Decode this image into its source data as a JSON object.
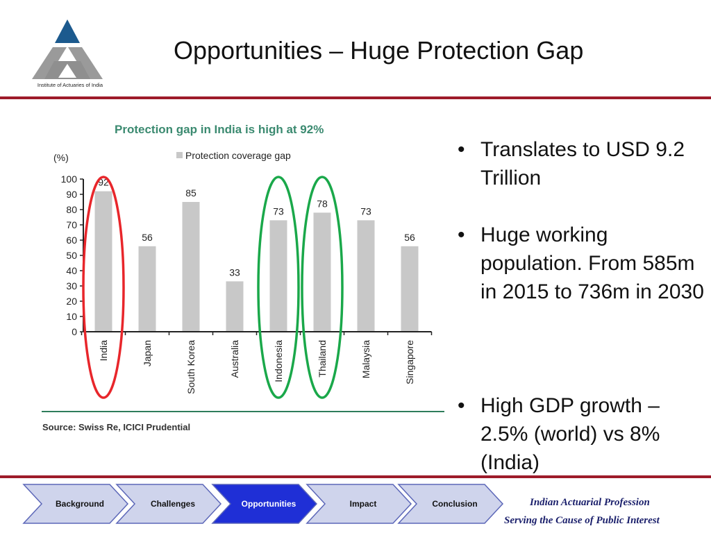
{
  "header": {
    "title": "Opportunities – Huge Protection Gap",
    "logo_caption": "Institute of Actuaries of India"
  },
  "chart_data": {
    "type": "bar",
    "title": "Protection gap in India is high at 92%",
    "ylabel": "(%)",
    "legend": "Protection coverage gap",
    "legend_placement": "top",
    "categories": [
      "India",
      "Japan",
      "South Korea",
      "Australia",
      "Indonesia",
      "Thailand",
      "Malaysia",
      "Singapore"
    ],
    "values": [
      92,
      56,
      85,
      33,
      73,
      78,
      73,
      56
    ],
    "data_labels": [
      "92",
      "56",
      "85",
      "33",
      "73",
      "78",
      "73",
      "56"
    ],
    "ylim": [
      0,
      100
    ],
    "yticks": [
      "0",
      "10",
      "20",
      "30",
      "40",
      "50",
      "60",
      "70",
      "80",
      "90",
      "100"
    ],
    "grid": false,
    "source": "Source:  Swiss Re, ICICI Prudential",
    "highlights": [
      {
        "category": "India",
        "color": "#e8262b"
      },
      {
        "category": "Indonesia",
        "color": "#1aa84a"
      },
      {
        "category": "Thailand",
        "color": "#1aa84a"
      }
    ],
    "colors": {
      "bar": "#c8c8c8",
      "title": "#3b8a70",
      "axis": "#222222"
    }
  },
  "bullets": [
    "Translates to USD 9.2 Trillion",
    "Huge working population. From 585m in 2015 to 736m in 2030",
    "High GDP growth – 2.5% (world) vs 8% (India)"
  ],
  "nav": {
    "items": [
      {
        "label": "Background",
        "active": false
      },
      {
        "label": "Challenges",
        "active": false
      },
      {
        "label": "Opportunities",
        "active": true
      },
      {
        "label": "Impact",
        "active": false
      },
      {
        "label": "Conclusion",
        "active": false
      }
    ],
    "colors": {
      "inactive": "#cfd4ec",
      "active": "#1f2fd6",
      "border": "#5c67b8"
    }
  },
  "footer": {
    "line1": "Indian Actuarial Profession",
    "line2": "Serving the Cause of Public Interest"
  }
}
